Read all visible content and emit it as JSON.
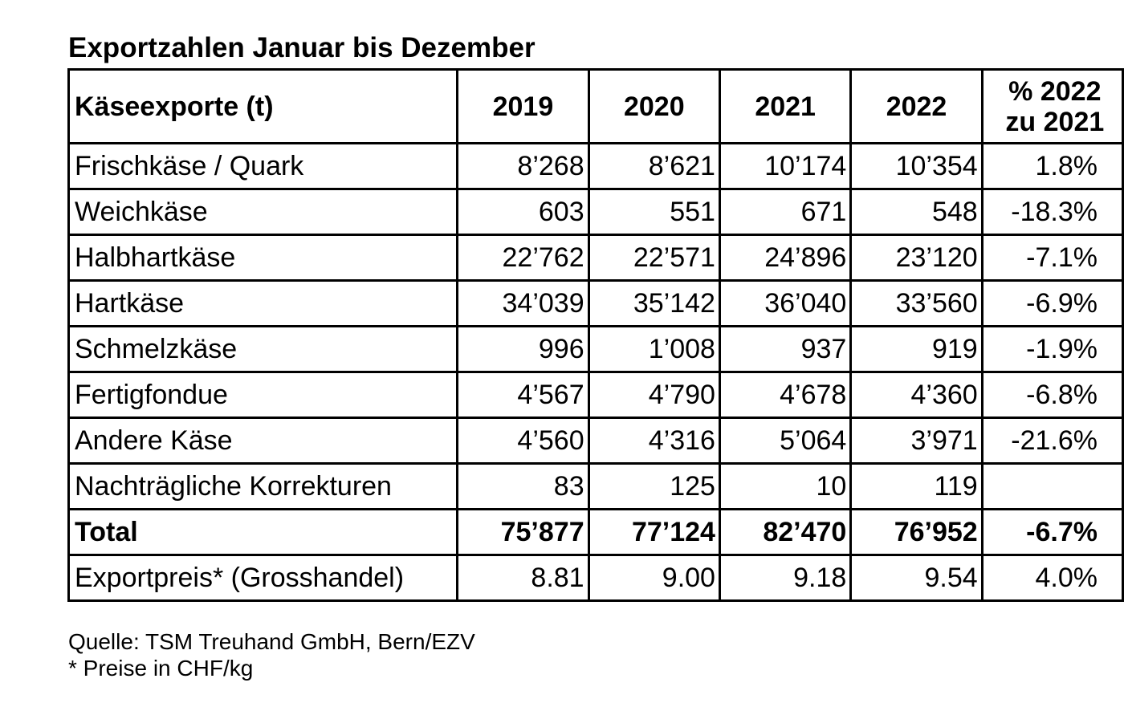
{
  "title": "Exportzahlen Januar bis Dezember",
  "table": {
    "header": [
      "Käseexporte (t)",
      "2019",
      "2020",
      "2021",
      "2022",
      [
        "% 2022",
        "zu 2021"
      ]
    ],
    "rows": [
      [
        "Frischkäse / Quark",
        "8’268",
        "8’621",
        "10’174",
        "10’354",
        "1.8%"
      ],
      [
        "Weichkäse",
        "603",
        "551",
        "671",
        "548",
        "-18.3%"
      ],
      [
        "Halbhartkäse",
        "22’762",
        "22’571",
        "24’896",
        "23’120",
        "-7.1%"
      ],
      [
        "Hartkäse",
        "34’039",
        "35’142",
        "36’040",
        "33’560",
        "-6.9%"
      ],
      [
        "Schmelzkäse",
        "996",
        "1’008",
        "937",
        "919",
        "-1.9%"
      ],
      [
        "Fertigfondue",
        "4’567",
        "4’790",
        "4’678",
        "4’360",
        "-6.8%"
      ],
      [
        "Andere Käse",
        "4’560",
        "4’316",
        "5’064",
        "3’971",
        "-21.6%"
      ],
      [
        "Nachträgliche Korrekturen",
        "83",
        "125",
        "10",
        "119",
        null
      ],
      [
        "Total",
        "75’877",
        "77’124",
        "82’470",
        "76’952",
        "-6.7%"
      ],
      [
        "Exportpreis* (Grosshandel)",
        "8.81",
        "9.00",
        "9.18",
        "9.54",
        "4.0%"
      ]
    ]
  },
  "footnotes": [
    "Quelle: TSM Treuhand GmbH, Bern/EZV",
    "* Preise in CHF/kg"
  ]
}
